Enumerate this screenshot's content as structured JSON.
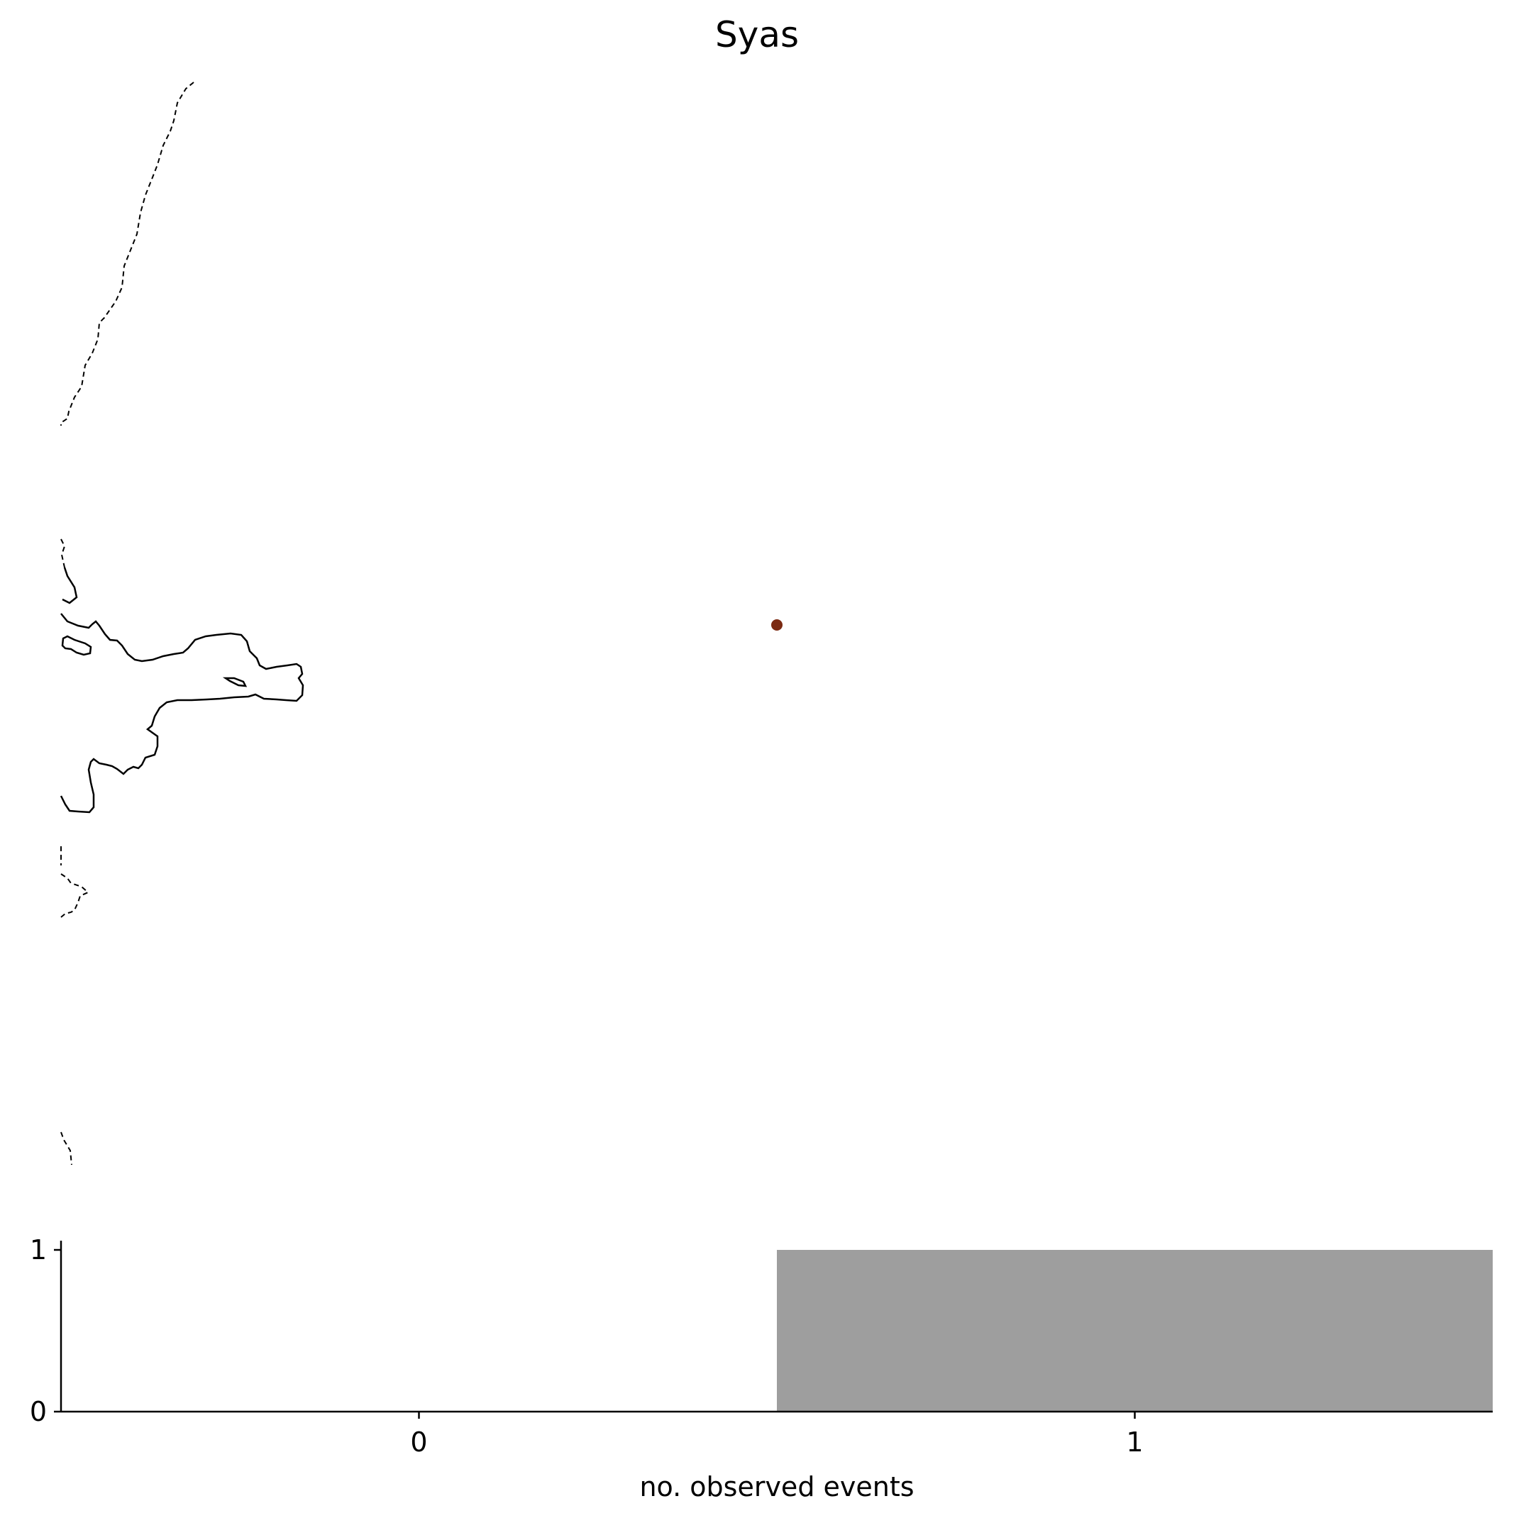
{
  "chart_data": [
    {
      "type": "map",
      "title": "Syas",
      "points": [
        {
          "label": "",
          "color": "#7b2a12"
        }
      ],
      "features": [
        "coastline",
        "country-border-dashed"
      ]
    },
    {
      "type": "bar",
      "title": "",
      "xlabel": "no. observed events",
      "ylabel": "",
      "categories": [
        "0",
        "1"
      ],
      "values": [
        0,
        1
      ],
      "bar_color": "#9e9e9e",
      "xlim": [
        -0.5,
        1.5
      ],
      "ylim": [
        0,
        1
      ],
      "xticks": [
        "0",
        "1"
      ],
      "yticks": [
        "0",
        "1"
      ]
    }
  ]
}
